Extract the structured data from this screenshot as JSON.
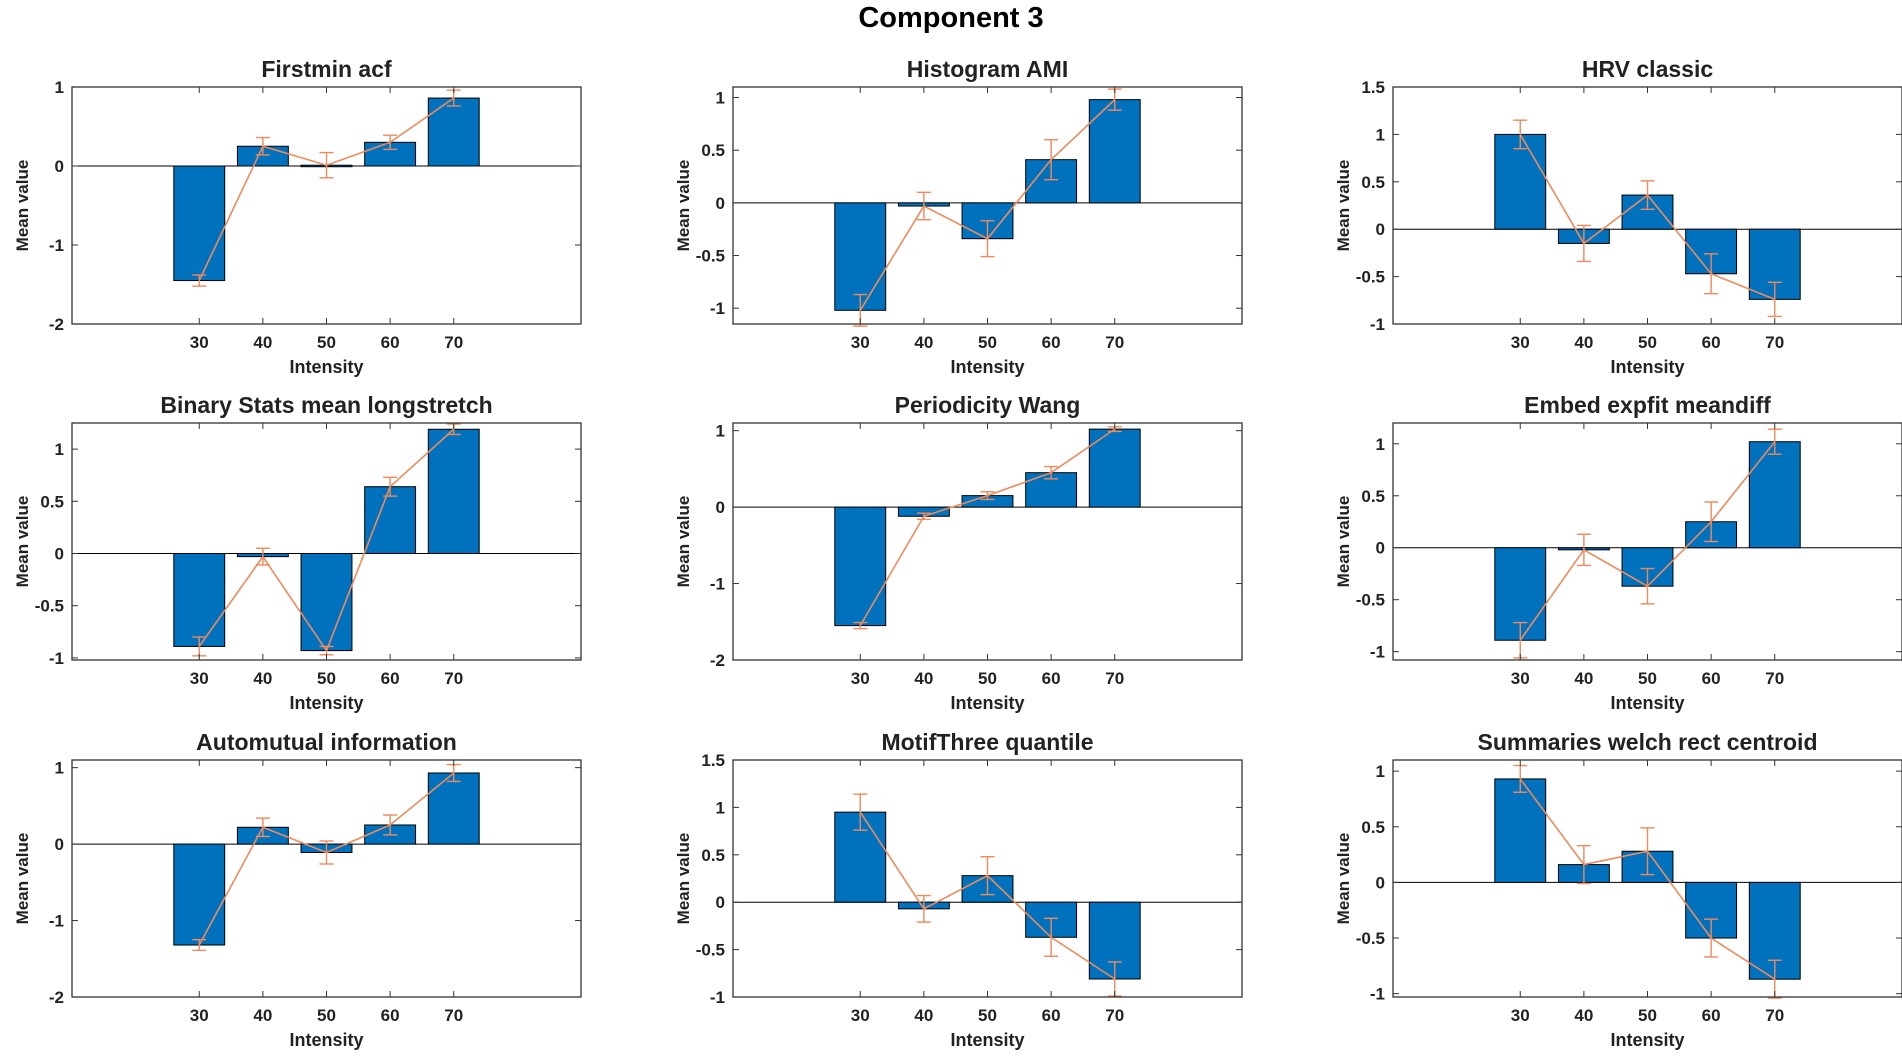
{
  "figure": {
    "title": "Component 3"
  },
  "colors": {
    "bar": "#0072BD",
    "bar_edge": "#000000",
    "line": "#EE8A5C",
    "axis": "#333333"
  },
  "chart_data": [
    {
      "type": "bar",
      "title": "Firstmin acf",
      "xlabel": "Intensity",
      "ylabel": "Mean value",
      "categories": [
        "30",
        "40",
        "50",
        "60",
        "70"
      ],
      "xlim": [
        10,
        90
      ],
      "ylim": [
        -2,
        1
      ],
      "yticks": [
        -2,
        -1,
        0,
        1
      ],
      "ytick_labels": [
        "-2",
        "-1",
        "0",
        "1"
      ],
      "values": [
        -1.45,
        0.25,
        0.01,
        0.3,
        0.86
      ],
      "line": [
        -1.45,
        0.25,
        0.01,
        0.3,
        0.86
      ],
      "errors": [
        0.07,
        0.11,
        0.16,
        0.09,
        0.1
      ]
    },
    {
      "type": "bar",
      "title": "Histogram AMI",
      "xlabel": "Intensity",
      "ylabel": "Mean value",
      "categories": [
        "30",
        "40",
        "50",
        "60",
        "70"
      ],
      "xlim": [
        10,
        90
      ],
      "ylim": [
        -1.15,
        1.1
      ],
      "yticks": [
        -1,
        -0.5,
        0,
        0.5,
        1
      ],
      "ytick_labels": [
        "-1",
        "-0.5",
        "0",
        "0.5",
        "1"
      ],
      "values": [
        -1.02,
        -0.03,
        -0.34,
        0.41,
        0.98
      ],
      "line": [
        -1.02,
        -0.03,
        -0.34,
        0.41,
        0.98
      ],
      "errors": [
        0.15,
        0.13,
        0.17,
        0.19,
        0.1
      ]
    },
    {
      "type": "bar",
      "title": "HRV classic",
      "xlabel": "Intensity",
      "ylabel": "Mean value",
      "categories": [
        "30",
        "40",
        "50",
        "60",
        "70"
      ],
      "xlim": [
        10,
        90
      ],
      "ylim": [
        -1,
        1.5
      ],
      "yticks": [
        -1,
        -0.5,
        0,
        0.5,
        1,
        1.5
      ],
      "ytick_labels": [
        "-1",
        "-0.5",
        "0",
        "0.5",
        "1",
        "1.5"
      ],
      "values": [
        1.0,
        -0.15,
        0.36,
        -0.47,
        -0.74
      ],
      "line": [
        1.0,
        -0.15,
        0.36,
        -0.47,
        -0.74
      ],
      "errors": [
        0.15,
        0.19,
        0.15,
        0.21,
        0.18
      ]
    },
    {
      "type": "bar",
      "title": "Binary Stats mean longstretch",
      "xlabel": "Intensity",
      "ylabel": "Mean value",
      "categories": [
        "30",
        "40",
        "50",
        "60",
        "70"
      ],
      "xlim": [
        10,
        90
      ],
      "ylim": [
        -1.02,
        1.25
      ],
      "yticks": [
        -1,
        -0.5,
        0,
        0.5,
        1
      ],
      "ytick_labels": [
        "-1",
        "-0.5",
        "0",
        "0.5",
        "1"
      ],
      "values": [
        -0.89,
        -0.03,
        -0.93,
        0.64,
        1.19
      ],
      "line": [
        -0.89,
        -0.03,
        -0.93,
        0.64,
        1.19
      ],
      "errors": [
        0.09,
        0.08,
        0.04,
        0.09,
        0.05
      ]
    },
    {
      "type": "bar",
      "title": "Periodicity Wang",
      "xlabel": "Intensity",
      "ylabel": "Mean value",
      "categories": [
        "30",
        "40",
        "50",
        "60",
        "70"
      ],
      "xlim": [
        10,
        90
      ],
      "ylim": [
        -2,
        1.1
      ],
      "yticks": [
        -2,
        -1,
        0,
        1
      ],
      "ytick_labels": [
        "-2",
        "-1",
        "0",
        "1"
      ],
      "values": [
        -1.55,
        -0.12,
        0.15,
        0.45,
        1.02
      ],
      "line": [
        -1.55,
        -0.12,
        0.15,
        0.45,
        1.02
      ],
      "errors": [
        0.04,
        0.04,
        0.05,
        0.08,
        0.03
      ]
    },
    {
      "type": "bar",
      "title": "Embed expfit meandiff",
      "xlabel": "Intensity",
      "ylabel": "Mean value",
      "categories": [
        "30",
        "40",
        "50",
        "60",
        "70"
      ],
      "xlim": [
        10,
        90
      ],
      "ylim": [
        -1.08,
        1.2
      ],
      "yticks": [
        -1,
        -0.5,
        0,
        0.5,
        1
      ],
      "ytick_labels": [
        "-1",
        "-0.5",
        "0",
        "0.5",
        "1"
      ],
      "values": [
        -0.89,
        -0.02,
        -0.37,
        0.25,
        1.02
      ],
      "line": [
        -0.89,
        -0.02,
        -0.37,
        0.25,
        1.02
      ],
      "errors": [
        0.17,
        0.15,
        0.17,
        0.19,
        0.12
      ]
    },
    {
      "type": "bar",
      "title": "Automutual information",
      "xlabel": "Intensity",
      "ylabel": "Mean value",
      "categories": [
        "30",
        "40",
        "50",
        "60",
        "70"
      ],
      "xlim": [
        10,
        90
      ],
      "ylim": [
        -2,
        1.1
      ],
      "yticks": [
        -2,
        -1,
        0,
        1
      ],
      "ytick_labels": [
        "-2",
        "-1",
        "0",
        "1"
      ],
      "values": [
        -1.32,
        0.22,
        -0.11,
        0.25,
        0.93
      ],
      "line": [
        -1.32,
        0.22,
        -0.11,
        0.25,
        0.93
      ],
      "errors": [
        0.07,
        0.12,
        0.15,
        0.13,
        0.11
      ]
    },
    {
      "type": "bar",
      "title": "MotifThree quantile",
      "xlabel": "Intensity",
      "ylabel": "Mean value",
      "categories": [
        "30",
        "40",
        "50",
        "60",
        "70"
      ],
      "xlim": [
        10,
        90
      ],
      "ylim": [
        -1,
        1.5
      ],
      "yticks": [
        -1,
        -0.5,
        0,
        0.5,
        1,
        1.5
      ],
      "ytick_labels": [
        "-1",
        "-0.5",
        "0",
        "0.5",
        "1",
        "1.5"
      ],
      "values": [
        0.95,
        -0.07,
        0.28,
        -0.37,
        -0.81
      ],
      "line": [
        0.95,
        -0.07,
        0.28,
        -0.37,
        -0.81
      ],
      "errors": [
        0.19,
        0.14,
        0.2,
        0.2,
        0.18
      ]
    },
    {
      "type": "bar",
      "title": "Summaries welch rect centroid",
      "xlabel": "Intensity",
      "ylabel": "Mean value",
      "categories": [
        "30",
        "40",
        "50",
        "60",
        "70"
      ],
      "xlim": [
        10,
        90
      ],
      "ylim": [
        -1.03,
        1.1
      ],
      "yticks": [
        -1,
        -0.5,
        0,
        0.5,
        1
      ],
      "ytick_labels": [
        "-1",
        "-0.5",
        "0",
        "0.5",
        "1"
      ],
      "values": [
        0.93,
        0.16,
        0.28,
        -0.5,
        -0.87
      ],
      "line": [
        0.93,
        0.16,
        0.28,
        -0.5,
        -0.87
      ],
      "errors": [
        0.12,
        0.17,
        0.21,
        0.17,
        0.17
      ]
    }
  ]
}
